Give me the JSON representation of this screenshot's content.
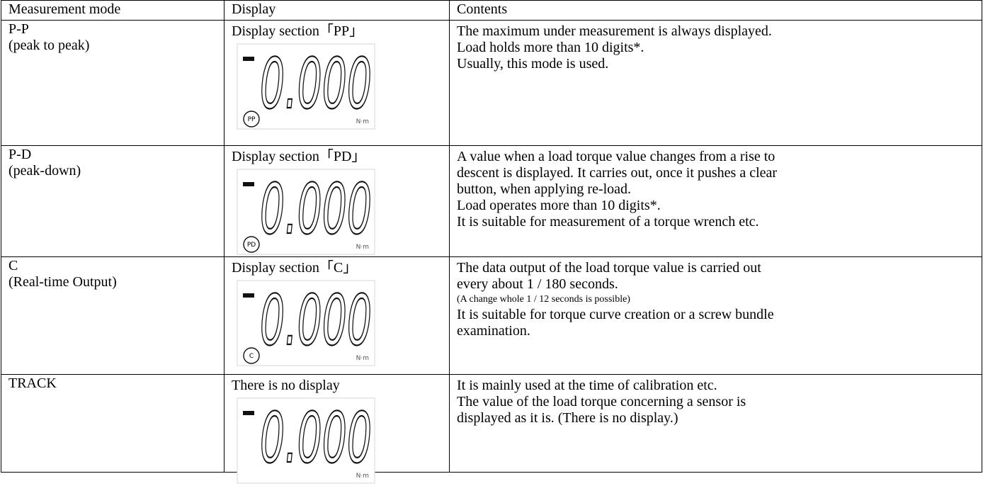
{
  "table": {
    "header": [
      "Measurement mode",
      "Display",
      "Contents"
    ],
    "rows": [
      {
        "mode": [
          "P-P",
          "(peak to peak)"
        ],
        "display": {
          "caption": "Display section「PP」",
          "reading": "0.000",
          "indicator": "PP",
          "unit": "N·m"
        },
        "contents": {
          "lines": [
            "The maximum under measurement is always displayed.",
            "Load holds more than 10 digits*.",
            "Usually, this mode is used."
          ]
        }
      },
      {
        "mode": [
          "P-D",
          "(peak-down)"
        ],
        "display": {
          "caption": "Display section「PD」",
          "reading": "0.000",
          "indicator": "PD",
          "unit": "N·m"
        },
        "contents": {
          "lines": [
            "A value when a load torque value changes from a rise to",
            "descent is displayed. It carries out, once it pushes a clear",
            "button, when applying re-load.",
            "Load operates more than 10 digits*.",
            "It is suitable for measurement of a torque wrench etc."
          ]
        }
      },
      {
        "mode": [
          "C",
          "(Real-time Output)"
        ],
        "display": {
          "caption": "Display section「C」",
          "reading": "0.000",
          "indicator": "C",
          "unit": "N·m"
        },
        "contents": {
          "lines": [
            "The data output of the load torque value is carried out",
            "every about 1 / 180 seconds."
          ],
          "note": "(A change whole 1 / 12 seconds is possible)",
          "after": [
            "It is suitable for torque curve creation or a screw bundle",
            "examination."
          ]
        }
      },
      {
        "mode": [
          "TRACK"
        ],
        "display": {
          "caption": "There is no display",
          "reading": "0.000",
          "unit": "N·m"
        },
        "contents": {
          "lines": [
            "It is mainly used at the time of calibration etc.",
            "The value of the load torque concerning a sensor is",
            "displayed as it is. (There is no display.)"
          ]
        }
      }
    ]
  }
}
